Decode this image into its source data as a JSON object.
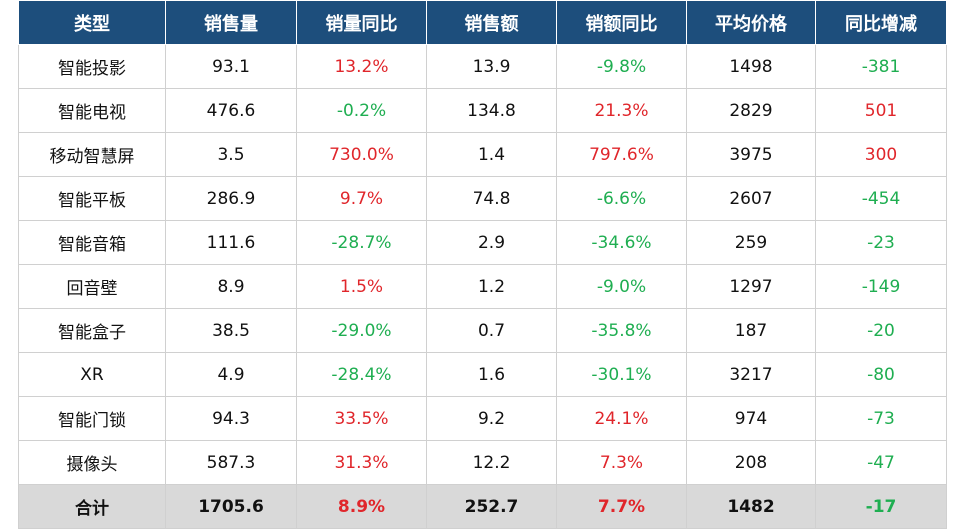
{
  "table": {
    "header": [
      "类型",
      "销售量",
      "销量同比",
      "销售额",
      "销额同比",
      "平均价格",
      "同比增减"
    ],
    "rows": [
      [
        "智能投影",
        "93.1",
        "13.2%",
        "13.9",
        "-9.8%",
        "1498",
        "-381"
      ],
      [
        "智能电视",
        "476.6",
        "-0.2%",
        "134.8",
        "21.3%",
        "2829",
        "501"
      ],
      [
        "移动智慧屏",
        "3.5",
        "730.0%",
        "1.4",
        "797.6%",
        "3975",
        "300"
      ],
      [
        "智能平板",
        "286.9",
        "9.7%",
        "74.8",
        "-6.6%",
        "2607",
        "-454"
      ],
      [
        "智能音箱",
        "111.6",
        "-28.7%",
        "2.9",
        "-34.6%",
        "259",
        "-23"
      ],
      [
        "回音壁",
        "8.9",
        "1.5%",
        "1.2",
        "-9.0%",
        "1297",
        "-149"
      ],
      [
        "智能盒子",
        "38.5",
        "-29.0%",
        "0.7",
        "-35.8%",
        "187",
        "-20"
      ],
      [
        "XR",
        "4.9",
        "-28.4%",
        "1.6",
        "-30.1%",
        "3217",
        "-80"
      ],
      [
        "智能门锁",
        "94.3",
        "33.5%",
        "9.2",
        "24.1%",
        "974",
        "-73"
      ],
      [
        "摄像头",
        "587.3",
        "31.3%",
        "12.2",
        "7.3%",
        "208",
        "-47"
      ]
    ],
    "total": [
      "合计",
      "1705.6",
      "8.9%",
      "252.7",
      "7.7%",
      "1482",
      "-17"
    ]
  }
}
